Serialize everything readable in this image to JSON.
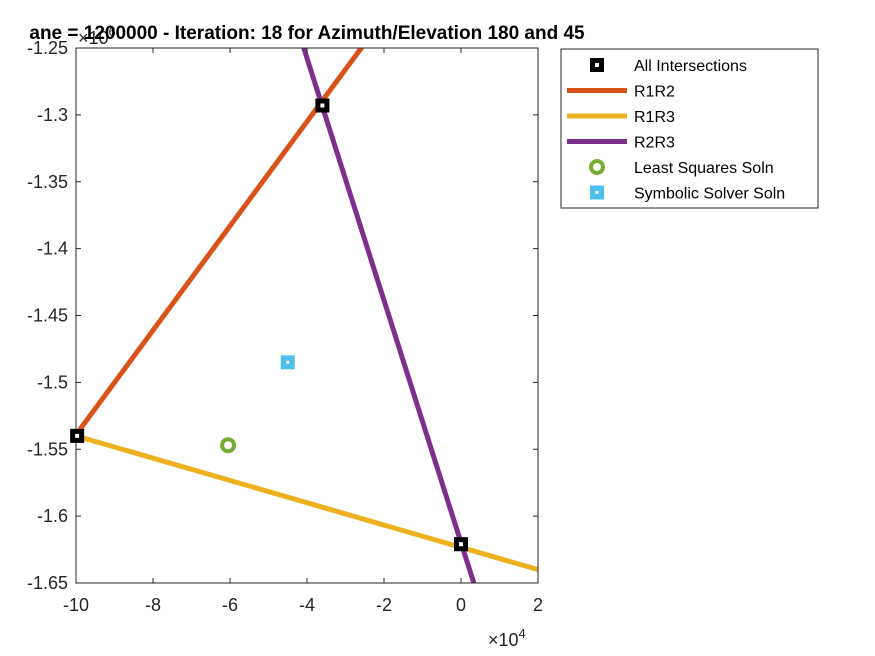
{
  "chart_data": {
    "type": "line",
    "title": "ane = 1200000 - Iteration: 18 for Azimuth/Elevation 180 and 45",
    "xlabel": "",
    "ylabel": "",
    "x_exponent": "×10",
    "x_exponent_power": "4",
    "y_exponent": "×10",
    "y_exponent_power": "6",
    "xlim": [
      -10,
      2
    ],
    "ylim": [
      -1.65,
      -1.25
    ],
    "grid": false,
    "legend_position": "outside-top-right",
    "x_ticks": [
      {
        "value": -10,
        "label": "-10"
      },
      {
        "value": -8,
        "label": "-8"
      },
      {
        "value": -6,
        "label": "-6"
      },
      {
        "value": -4,
        "label": "-4"
      },
      {
        "value": -2,
        "label": "-2"
      },
      {
        "value": 0,
        "label": "0"
      },
      {
        "value": 2,
        "label": "2"
      }
    ],
    "y_ticks": [
      {
        "value": -1.25,
        "label": "-1.25"
      },
      {
        "value": -1.3,
        "label": "-1.3"
      },
      {
        "value": -1.35,
        "label": "-1.35"
      },
      {
        "value": -1.4,
        "label": "-1.4"
      },
      {
        "value": -1.45,
        "label": "-1.45"
      },
      {
        "value": -1.5,
        "label": "-1.5"
      },
      {
        "value": -1.55,
        "label": "-1.55"
      },
      {
        "value": -1.6,
        "label": "-1.6"
      },
      {
        "value": -1.65,
        "label": "-1.65"
      }
    ],
    "series": [
      {
        "name": "R1R2",
        "kind": "line",
        "color": "#D95319",
        "points": [
          [
            -10.1,
            -1.543
          ],
          [
            -2.5,
            -1.2465
          ]
        ]
      },
      {
        "name": "R1R3",
        "kind": "line",
        "color": "#EDB120",
        "points": [
          [
            -10.0,
            -1.54
          ],
          [
            2.0,
            -1.64
          ]
        ]
      },
      {
        "name": "R2R3",
        "kind": "line",
        "color": "#7E2F8E",
        "points": [
          [
            -4.1,
            -1.2485
          ],
          [
            0.35,
            -1.6515
          ]
        ]
      },
      {
        "name": "All Intersections",
        "kind": "marker-square",
        "color": "#000000",
        "points": [
          [
            -3.6,
            -1.293
          ],
          [
            -9.97,
            -1.54
          ],
          [
            0.0,
            -1.621
          ]
        ]
      },
      {
        "name": "Least Squares Soln",
        "kind": "marker-circle",
        "color": "#77AC30",
        "points": [
          [
            -6.05,
            -1.547
          ]
        ]
      },
      {
        "name": "Symbolic Solver Soln",
        "kind": "marker-square-filled",
        "color": "#4DBEEE",
        "points": [
          [
            -4.5,
            -1.485
          ]
        ]
      }
    ],
    "legend": [
      {
        "name": "All Intersections",
        "kind": "marker-square",
        "color": "#000000"
      },
      {
        "name": "R1R2",
        "kind": "line",
        "color": "#D95319"
      },
      {
        "name": "R1R3",
        "kind": "line",
        "color": "#EDB120"
      },
      {
        "name": "R2R3",
        "kind": "line",
        "color": "#7E2F8E"
      },
      {
        "name": "Least Squares Soln",
        "kind": "marker-circle",
        "color": "#77AC30"
      },
      {
        "name": "Symbolic Solver Soln",
        "kind": "marker-square-filled",
        "color": "#4DBEEE"
      }
    ]
  }
}
